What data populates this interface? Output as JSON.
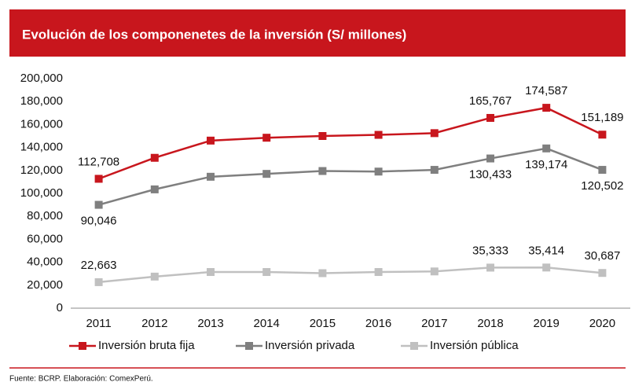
{
  "chart_data": {
    "type": "line",
    "title": "Evolución de los componenetes de la inversión (S/ millones)",
    "source": "Fuente: BCRP. Elaboración: ComexPerú.",
    "categories": [
      "2011",
      "2012",
      "2013",
      "2014",
      "2015",
      "2016",
      "2017",
      "2018",
      "2019",
      "2020"
    ],
    "series": [
      {
        "name": "Inversión bruta fija",
        "color": "#c8161d",
        "label_side": "above",
        "values": [
          112708,
          131000,
          146000,
          148500,
          150000,
          151000,
          152500,
          165767,
          174587,
          151189
        ],
        "value_labels": [
          "112,708",
          null,
          null,
          null,
          null,
          null,
          null,
          "165,767",
          "174,587",
          "151,189"
        ]
      },
      {
        "name": "Inversión privada",
        "color": "#7f7f7f",
        "label_side": "below",
        "values": [
          90046,
          103500,
          114500,
          117000,
          119500,
          119000,
          120500,
          130433,
          139174,
          120502
        ],
        "value_labels": [
          "90,046",
          null,
          null,
          null,
          null,
          null,
          null,
          "130,433",
          "139,174",
          "120,502"
        ]
      },
      {
        "name": "Inversión pública",
        "color": "#c0c0c0",
        "label_side": "above",
        "values": [
          22663,
          27500,
          31500,
          31500,
          30500,
          31500,
          32000,
          35333,
          35414,
          30687
        ],
        "value_labels": [
          "22,663",
          null,
          null,
          null,
          null,
          null,
          null,
          "35,333",
          "35,414",
          "30,687"
        ]
      }
    ],
    "ylim": [
      0,
      200000
    ],
    "yticks": [
      0,
      {
        "value": 20000,
        "label": "20,000"
      },
      {
        "value": 40000,
        "label": "40,000"
      },
      {
        "value": 60000,
        "label": "60,000"
      },
      {
        "value": 80000,
        "label": "80,000"
      },
      {
        "value": 100000,
        "label": "100,000"
      },
      {
        "value": 120000,
        "label": "120,000"
      },
      {
        "value": 140000,
        "label": "140,000"
      },
      {
        "value": 160000,
        "label": "160,000"
      },
      {
        "value": 180000,
        "label": "180,000"
      },
      {
        "value": 200000,
        "label": "200,000"
      }
    ],
    "grid": false,
    "legend": "bottom"
  }
}
